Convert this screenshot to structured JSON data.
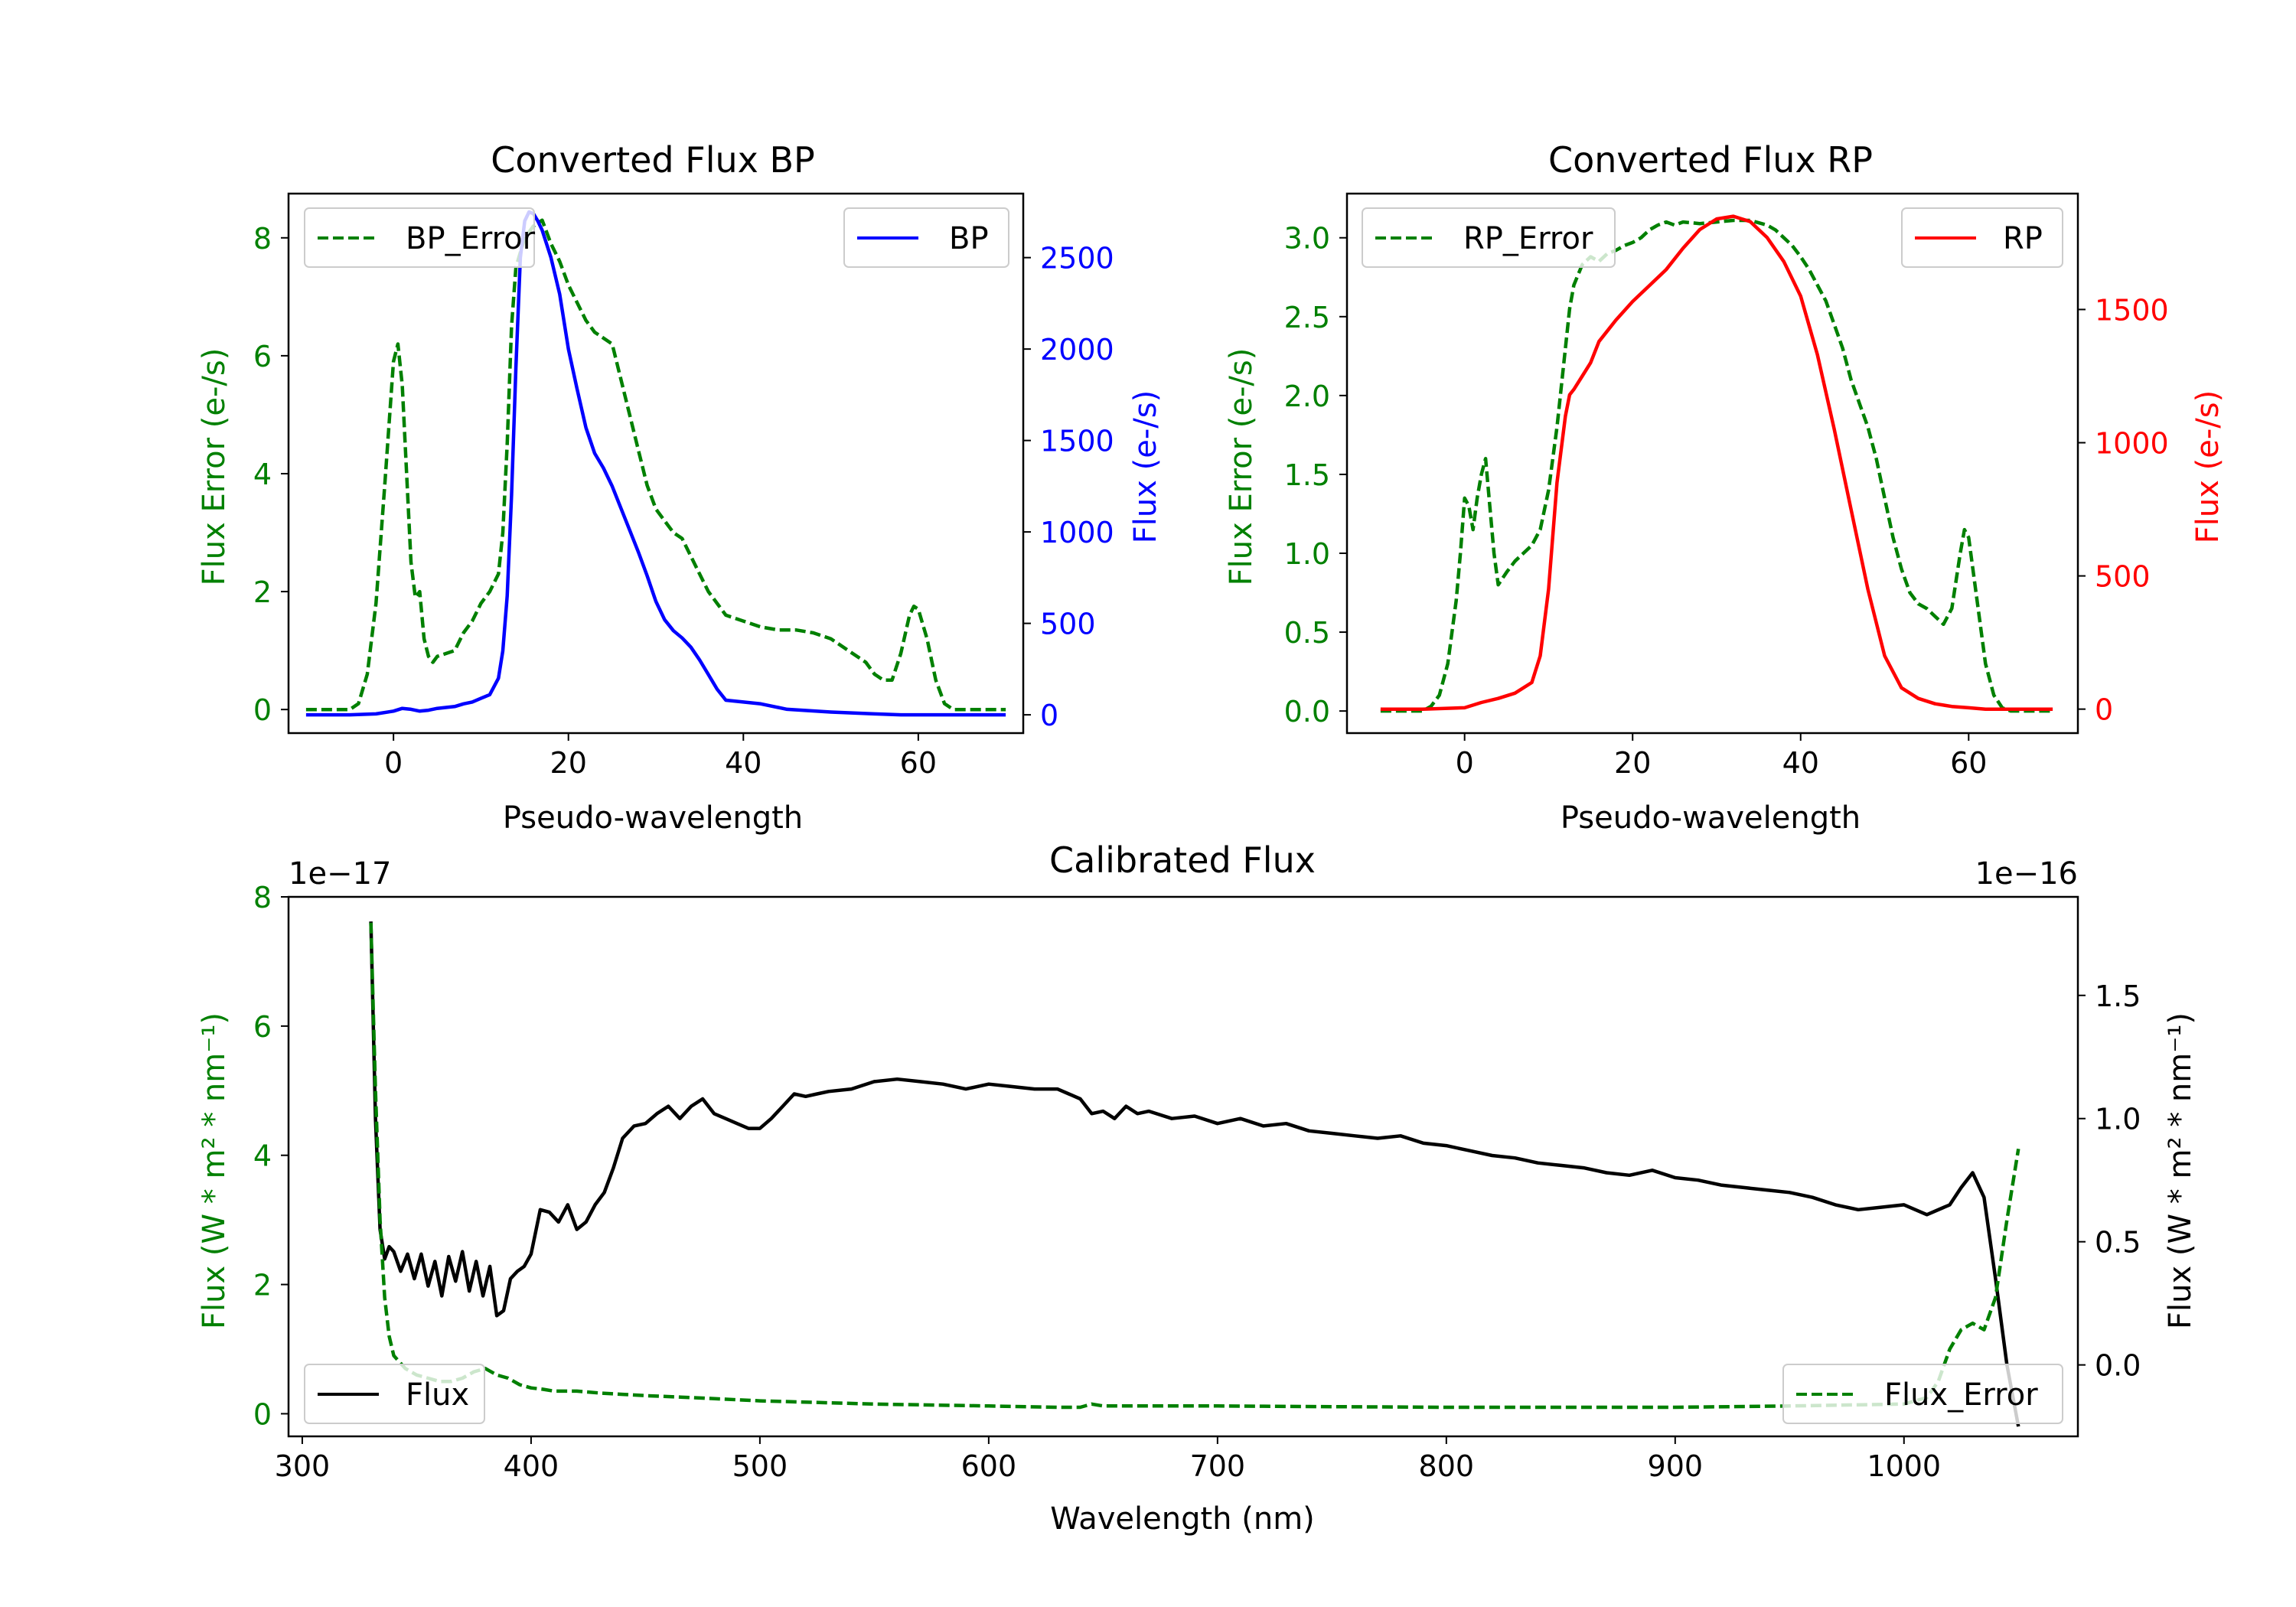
{
  "colors": {
    "axis": "#000000",
    "bp": "#0000ff",
    "rp": "#ff0000",
    "error": "#008000",
    "flux": "#000000",
    "legend_border": "#cccccc"
  },
  "chart_data": [
    {
      "id": "bp",
      "type": "line",
      "title": "Converted Flux BP",
      "xlabel": "Pseudo-wavelength",
      "ylabel_left": "Flux Error (e-/s)",
      "ylabel_right": "Flux (e-/s)",
      "xlim": [
        -12,
        72
      ],
      "ylim_left": [
        -0.4,
        8.75
      ],
      "ylim_right": [
        -100,
        2850
      ],
      "xticks": [
        0,
        20,
        40,
        60
      ],
      "yticks_left": [
        0,
        2,
        4,
        6,
        8
      ],
      "yticks_right": [
        0,
        500,
        1000,
        1500,
        2000,
        2500
      ],
      "left_tick_color": "#008000",
      "right_tick_color": "#0000ff",
      "legend_left": {
        "label": "BP_Error",
        "position": "upper left"
      },
      "legend_right": {
        "label": "BP",
        "position": "upper right"
      },
      "series": [
        {
          "name": "BP_Error",
          "axis": "left",
          "style": "dashed",
          "color": "#008000",
          "x": [
            -10,
            -7,
            -5,
            -4,
            -3,
            -2,
            -1,
            0,
            0.5,
            1,
            2,
            2.5,
            3,
            3.5,
            4,
            4.5,
            5,
            6,
            7,
            8,
            9,
            10,
            11,
            12,
            12.5,
            13,
            13.5,
            14,
            15,
            16,
            17,
            18,
            19,
            20,
            21,
            22,
            23,
            24,
            25,
            26,
            27,
            28,
            29,
            30,
            31,
            32,
            33,
            34,
            35,
            36,
            37,
            38,
            40,
            42,
            44,
            46,
            48,
            50,
            52,
            54,
            55,
            56,
            57,
            58,
            59,
            59.5,
            60,
            61,
            62,
            63,
            64,
            65,
            67,
            70
          ],
          "y": [
            0,
            0,
            0,
            0.1,
            0.6,
            1.8,
            3.8,
            5.9,
            6.2,
            5.5,
            2.5,
            1.9,
            2.0,
            1.2,
            0.9,
            0.8,
            0.9,
            0.95,
            1.0,
            1.3,
            1.5,
            1.8,
            2.0,
            2.3,
            3.0,
            4.5,
            6.5,
            7.5,
            8.0,
            8.2,
            8.3,
            7.9,
            7.6,
            7.2,
            6.9,
            6.6,
            6.4,
            6.3,
            6.2,
            5.6,
            5.0,
            4.4,
            3.8,
            3.4,
            3.2,
            3.0,
            2.9,
            2.6,
            2.3,
            2.0,
            1.8,
            1.6,
            1.5,
            1.4,
            1.35,
            1.35,
            1.3,
            1.2,
            1.0,
            0.8,
            0.6,
            0.5,
            0.5,
            0.95,
            1.6,
            1.75,
            1.7,
            1.2,
            0.5,
            0.1,
            0,
            0,
            0,
            0
          ]
        },
        {
          "name": "BP",
          "axis": "right",
          "style": "solid",
          "color": "#0000ff",
          "x": [
            -10,
            -5,
            -2,
            0,
            1,
            2,
            3,
            4,
            5,
            6,
            7,
            8,
            9,
            10,
            11,
            12,
            12.5,
            13,
            13.5,
            14,
            14.5,
            15,
            15.5,
            16,
            16.5,
            17,
            18,
            19,
            20,
            21,
            22,
            23,
            24,
            25,
            26,
            27,
            28,
            29,
            30,
            31,
            32,
            33,
            34,
            35,
            36,
            37,
            38,
            40,
            42,
            45,
            50,
            55,
            58,
            60,
            65,
            70
          ],
          "y": [
            0,
            0,
            5,
            20,
            35,
            30,
            20,
            25,
            35,
            40,
            45,
            60,
            70,
            90,
            110,
            200,
            350,
            650,
            1200,
            1900,
            2500,
            2700,
            2750,
            2740,
            2700,
            2650,
            2500,
            2300,
            2000,
            1780,
            1570,
            1430,
            1350,
            1250,
            1130,
            1010,
            890,
            760,
            620,
            520,
            460,
            420,
            370,
            300,
            220,
            140,
            80,
            70,
            60,
            30,
            15,
            5,
            0,
            0,
            0,
            0
          ]
        }
      ]
    },
    {
      "id": "rp",
      "type": "line",
      "title": "Converted Flux RP",
      "xlabel": "Pseudo-wavelength",
      "ylabel_left": "Flux Error (e-/s)",
      "ylabel_right": "Flux (e-/s)",
      "xlim": [
        -14,
        73
      ],
      "ylim_left": [
        -0.14,
        3.28
      ],
      "ylim_right": [
        -90,
        1935
      ],
      "xticks": [
        0,
        20,
        40,
        60
      ],
      "yticks_left": [
        0.0,
        0.5,
        1.0,
        1.5,
        2.0,
        2.5,
        3.0
      ],
      "yticks_right": [
        0,
        500,
        1000,
        1500
      ],
      "left_tick_color": "#008000",
      "right_tick_color": "#ff0000",
      "legend_left": {
        "label": "RP_Error",
        "position": "upper left"
      },
      "legend_right": {
        "label": "RP",
        "position": "upper right"
      },
      "series": [
        {
          "name": "RP_Error",
          "axis": "left",
          "style": "dashed",
          "color": "#008000",
          "x": [
            -10,
            -5,
            -4,
            -3,
            -2,
            -1,
            -0.5,
            0,
            0.5,
            1,
            1.5,
            2,
            2.5,
            3,
            3.5,
            4,
            5,
            6,
            7,
            8,
            9,
            10,
            11,
            12,
            12.5,
            13,
            14,
            15,
            16,
            17,
            18,
            19,
            20,
            21,
            22,
            23,
            24,
            25,
            26,
            28,
            30,
            32,
            34,
            36,
            37,
            38,
            39,
            40,
            41,
            42,
            43,
            44,
            45,
            46,
            47,
            48,
            49,
            50,
            51,
            52,
            53,
            54,
            55,
            56,
            57,
            58,
            59,
            59.5,
            60,
            61,
            62,
            63,
            64,
            65,
            67,
            70
          ],
          "y": [
            0,
            0,
            0.03,
            0.1,
            0.3,
            0.7,
            1.0,
            1.35,
            1.3,
            1.15,
            1.35,
            1.5,
            1.6,
            1.3,
            1.0,
            0.8,
            0.88,
            0.95,
            1.0,
            1.05,
            1.15,
            1.4,
            1.8,
            2.3,
            2.55,
            2.7,
            2.83,
            2.88,
            2.85,
            2.9,
            2.92,
            2.95,
            2.97,
            3.0,
            3.05,
            3.08,
            3.1,
            3.08,
            3.1,
            3.09,
            3.1,
            3.11,
            3.11,
            3.08,
            3.05,
            3.0,
            2.95,
            2.88,
            2.8,
            2.7,
            2.6,
            2.45,
            2.3,
            2.1,
            1.95,
            1.8,
            1.6,
            1.35,
            1.1,
            0.9,
            0.75,
            0.68,
            0.65,
            0.6,
            0.55,
            0.65,
            1.0,
            1.15,
            1.1,
            0.7,
            0.3,
            0.1,
            0.02,
            0,
            0,
            0
          ]
        },
        {
          "name": "RP",
          "axis": "right",
          "style": "solid",
          "color": "#ff0000",
          "x": [
            -10,
            -5,
            0,
            2,
            4,
            6,
            8,
            9,
            10,
            11,
            12,
            12.5,
            13,
            14,
            15,
            16,
            17,
            18,
            20,
            22,
            24,
            26,
            28,
            30,
            32,
            34,
            36,
            38,
            40,
            42,
            44,
            46,
            48,
            50,
            52,
            54,
            56,
            58,
            60,
            62,
            65,
            70
          ],
          "y": [
            0,
            0,
            5,
            25,
            40,
            60,
            100,
            200,
            450,
            850,
            1100,
            1180,
            1200,
            1250,
            1300,
            1380,
            1420,
            1460,
            1530,
            1590,
            1650,
            1730,
            1800,
            1840,
            1850,
            1830,
            1770,
            1680,
            1550,
            1330,
            1050,
            750,
            450,
            200,
            80,
            40,
            20,
            10,
            5,
            0,
            0,
            0
          ]
        }
      ]
    },
    {
      "id": "calibrated",
      "type": "line",
      "title": "Calibrated Flux",
      "xlabel": "Wavelength (nm)",
      "ylabel_left": "Flux (W * m² * nm⁻¹)",
      "ylabel_right": "Flux (W * m² * nm⁻¹)",
      "left_offset_text": "1e−17",
      "right_offset_text": "1e−16",
      "xlim": [
        294,
        1076
      ],
      "ylim_left": [
        -0.35,
        8.0
      ],
      "ylim_right": [
        -0.29,
        1.9
      ],
      "xticks": [
        300,
        400,
        500,
        600,
        700,
        800,
        900,
        1000
      ],
      "yticks_left": [
        0,
        2,
        4,
        6,
        8
      ],
      "yticks_right": [
        0.0,
        0.5,
        1.0,
        1.5
      ],
      "yticklabels_right": [
        "0.0",
        "0.5",
        "1.0",
        "1.5"
      ],
      "left_tick_color": "#008000",
      "right_tick_color": "#000000",
      "legend_left": {
        "label": "Flux",
        "position": "lower left"
      },
      "legend_right": {
        "label": "Flux_Error",
        "position": "lower right"
      },
      "series": [
        {
          "name": "Flux",
          "axis": "right",
          "style": "solid",
          "color": "#000000",
          "x": [
            330,
            332,
            334,
            336,
            338,
            340,
            343,
            346,
            349,
            352,
            355,
            358,
            361,
            364,
            367,
            370,
            373,
            376,
            379,
            382,
            385,
            388,
            391,
            394,
            397,
            400,
            404,
            408,
            412,
            416,
            420,
            424,
            428,
            432,
            436,
            440,
            445,
            450,
            455,
            460,
            465,
            470,
            475,
            480,
            485,
            490,
            495,
            500,
            505,
            510,
            515,
            520,
            525,
            530,
            540,
            550,
            560,
            570,
            580,
            590,
            600,
            610,
            620,
            630,
            635,
            640,
            645,
            650,
            655,
            660,
            665,
            670,
            680,
            690,
            700,
            710,
            720,
            730,
            740,
            750,
            760,
            770,
            780,
            790,
            800,
            810,
            820,
            830,
            840,
            850,
            860,
            870,
            880,
            890,
            900,
            910,
            920,
            930,
            940,
            950,
            960,
            970,
            980,
            990,
            1000,
            1010,
            1020,
            1025,
            1030,
            1035,
            1040,
            1045,
            1050
          ],
          "y": [
            1.8,
            1.0,
            0.55,
            0.43,
            0.48,
            0.46,
            0.38,
            0.45,
            0.35,
            0.45,
            0.32,
            0.42,
            0.28,
            0.44,
            0.34,
            0.46,
            0.3,
            0.42,
            0.28,
            0.4,
            0.2,
            0.22,
            0.35,
            0.38,
            0.4,
            0.45,
            0.63,
            0.62,
            0.58,
            0.65,
            0.55,
            0.58,
            0.65,
            0.7,
            0.8,
            0.92,
            0.97,
            0.98,
            1.02,
            1.05,
            1.0,
            1.05,
            1.08,
            1.02,
            1.0,
            0.98,
            0.96,
            0.96,
            1.0,
            1.05,
            1.1,
            1.09,
            1.1,
            1.11,
            1.12,
            1.15,
            1.16,
            1.15,
            1.14,
            1.12,
            1.14,
            1.13,
            1.12,
            1.12,
            1.1,
            1.08,
            1.02,
            1.03,
            1.0,
            1.05,
            1.02,
            1.03,
            1.0,
            1.01,
            0.98,
            1.0,
            0.97,
            0.98,
            0.95,
            0.94,
            0.93,
            0.92,
            0.93,
            0.9,
            0.89,
            0.87,
            0.85,
            0.84,
            0.82,
            0.81,
            0.8,
            0.78,
            0.77,
            0.79,
            0.76,
            0.75,
            0.73,
            0.72,
            0.71,
            0.7,
            0.68,
            0.65,
            0.63,
            0.64,
            0.65,
            0.61,
            0.65,
            0.72,
            0.78,
            0.68,
            0.35,
            0.0,
            -0.25
          ]
        },
        {
          "name": "Flux_Error",
          "axis": "left",
          "style": "dashed",
          "color": "#008000",
          "x": [
            330,
            332,
            334,
            336,
            338,
            340,
            345,
            350,
            355,
            360,
            365,
            370,
            375,
            380,
            385,
            390,
            395,
            400,
            405,
            410,
            420,
            430,
            440,
            450,
            470,
            500,
            550,
            600,
            630,
            640,
            645,
            650,
            700,
            750,
            800,
            850,
            900,
            950,
            1000,
            1010,
            1015,
            1020,
            1025,
            1030,
            1035,
            1040,
            1045,
            1050
          ],
          "y": [
            7.6,
            5.0,
            3.0,
            1.8,
            1.2,
            0.9,
            0.7,
            0.6,
            0.55,
            0.5,
            0.5,
            0.55,
            0.65,
            0.7,
            0.6,
            0.55,
            0.45,
            0.4,
            0.38,
            0.35,
            0.35,
            0.32,
            0.3,
            0.28,
            0.25,
            0.2,
            0.15,
            0.12,
            0.1,
            0.1,
            0.15,
            0.12,
            0.12,
            0.11,
            0.1,
            0.1,
            0.1,
            0.12,
            0.15,
            0.25,
            0.5,
            1.0,
            1.3,
            1.4,
            1.3,
            1.8,
            3.0,
            4.1
          ]
        }
      ]
    }
  ]
}
